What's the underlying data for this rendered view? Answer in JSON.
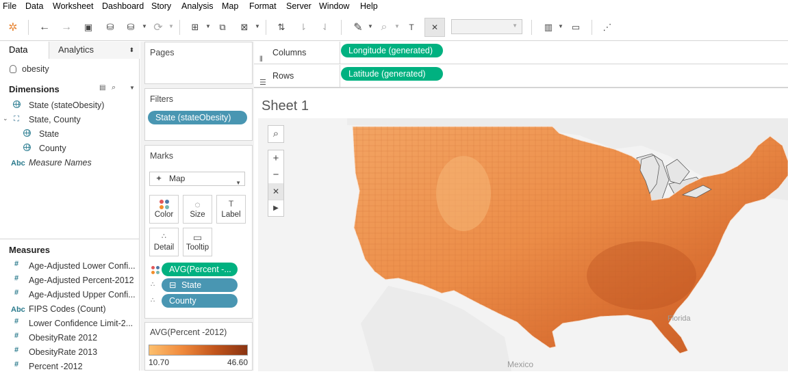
{
  "menu": [
    "File",
    "Data",
    "Worksheet",
    "Dashboard",
    "Story",
    "Analysis",
    "Map",
    "Format",
    "Server",
    "Window",
    "Help"
  ],
  "data_pane": {
    "tab_data": "Data",
    "tab_analytics": "Analytics",
    "datasource": "obesity",
    "dimensions_header": "Dimensions",
    "dimensions": [
      {
        "label": "State (stateObesity)",
        "icon": "globe-icon"
      },
      {
        "label": "State, County",
        "icon": "hierarchy-icon"
      },
      {
        "label": "State",
        "icon": "globe-icon"
      },
      {
        "label": "County",
        "icon": "globe-icon"
      },
      {
        "label": "Measure Names",
        "icon": "abc-icon"
      }
    ],
    "measures_header": "Measures",
    "measures": [
      {
        "label": "Age-Adjusted Lower Confi...",
        "icon": "hash-icon"
      },
      {
        "label": "Age-Adjusted Percent-2012",
        "icon": "hash-icon"
      },
      {
        "label": "Age-Adjusted Upper Confi...",
        "icon": "hash-icon"
      },
      {
        "label": "FIPS Codes (Count)",
        "icon": "abc-icon"
      },
      {
        "label": "Lower Confidence Limit-2...",
        "icon": "hash-icon"
      },
      {
        "label": "ObesityRate 2012",
        "icon": "hash-icon"
      },
      {
        "label": "ObesityRate 2013",
        "icon": "hash-icon"
      },
      {
        "label": "Percent -2012",
        "icon": "hash-icon"
      }
    ]
  },
  "shelves": {
    "pages_title": "Pages",
    "filters_title": "Filters",
    "filter_pill": "State (stateObesity)",
    "marks_title": "Marks",
    "mark_type": "Map",
    "mark_buttons": [
      "Color",
      "Size",
      "Label",
      "Detail",
      "Tooltip"
    ],
    "mark_pills": [
      {
        "label": "AVG(Percent -...",
        "color": "#00b180",
        "icon": "color-dots-icon"
      },
      {
        "label": "State",
        "color": "#4996b2",
        "icon": "detail-dots-icon",
        "prefix": "⊟"
      },
      {
        "label": "County",
        "color": "#4996b2",
        "icon": "detail-dots-icon"
      }
    ],
    "legend_title": "AVG(Percent -2012)",
    "legend_min": "10.70",
    "legend_max": "46.60",
    "legend_colors": [
      "#fcbf6e",
      "#8a3412"
    ]
  },
  "columns": {
    "label": "Columns",
    "pill": "Longitude (generated)"
  },
  "rows": {
    "label": "Rows",
    "pill": "Latitude (generated)"
  },
  "sheet": {
    "title": "Sheet 1",
    "map_labels": {
      "mexico": "Mexico",
      "florida": "Florida"
    }
  }
}
